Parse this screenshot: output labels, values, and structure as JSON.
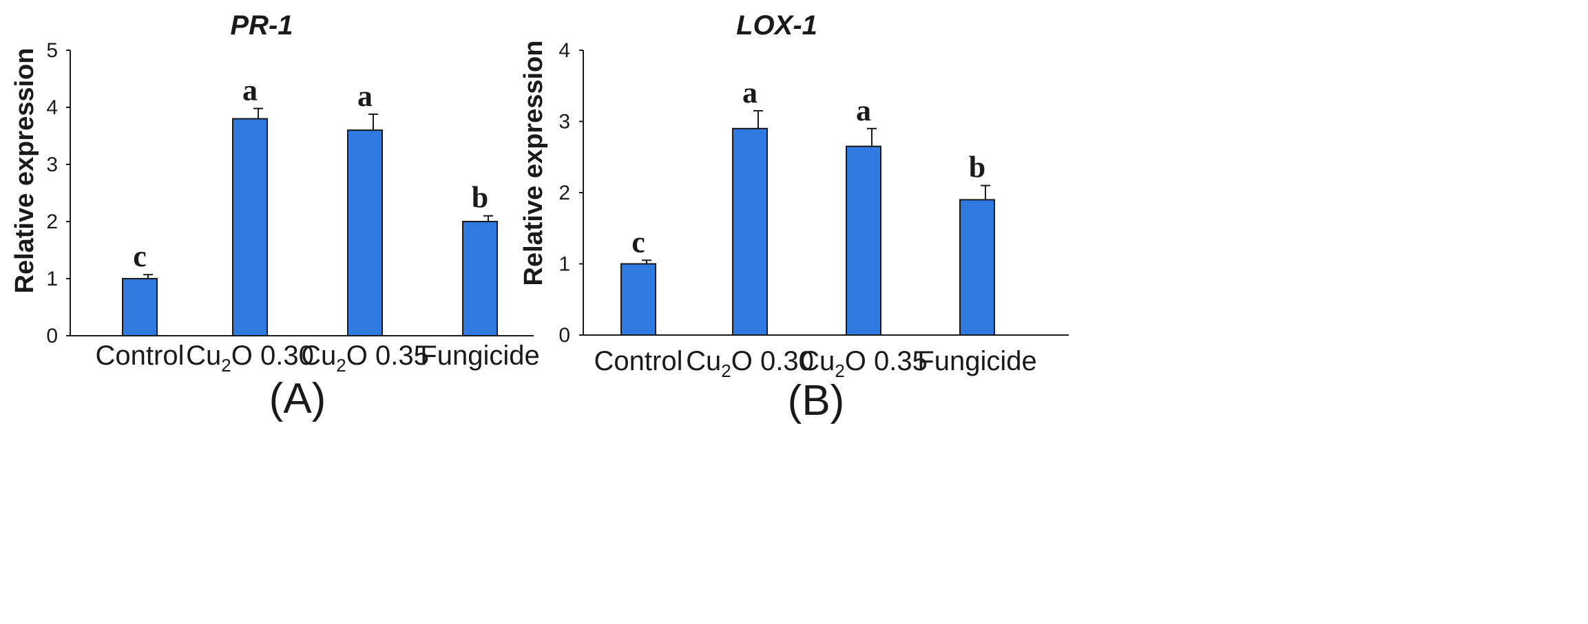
{
  "chart_data": [
    {
      "type": "bar",
      "panel_label": "(A)",
      "title": "PR-1",
      "xlabel": "",
      "ylabel": "Relative expression",
      "ylim": [
        0,
        5
      ],
      "yticks": [
        "0",
        "1",
        "2",
        "3",
        "4",
        "5"
      ],
      "categories": [
        {
          "base": "Control",
          "sub": "",
          "rest": ""
        },
        {
          "base": "Cu",
          "sub": "2",
          "rest": "O 0.30"
        },
        {
          "base": "Cu",
          "sub": "2",
          "rest": "O 0.35"
        },
        {
          "base": "Fungicide",
          "sub": "",
          "rest": ""
        }
      ],
      "values": [
        1.0,
        3.8,
        3.6,
        2.0
      ],
      "errors": [
        0.07,
        0.18,
        0.28,
        0.1
      ],
      "significance": [
        "c",
        "a",
        "a",
        "b"
      ],
      "bar_color": "#2f7ae0",
      "grid": false
    },
    {
      "type": "bar",
      "panel_label": "(B)",
      "title": "LOX-1",
      "xlabel": "",
      "ylabel": "Relative expression",
      "ylim": [
        0,
        4
      ],
      "yticks": [
        "0",
        "1",
        "2",
        "3",
        "4"
      ],
      "categories": [
        {
          "base": "Control",
          "sub": "",
          "rest": ""
        },
        {
          "base": "Cu",
          "sub": "2",
          "rest": "O 0.30"
        },
        {
          "base": "Cu",
          "sub": "2",
          "rest": "O 0.35"
        },
        {
          "base": "Fungicide",
          "sub": "",
          "rest": ""
        }
      ],
      "values": [
        1.0,
        2.9,
        2.65,
        1.9
      ],
      "errors": [
        0.05,
        0.25,
        0.25,
        0.2
      ],
      "significance": [
        "c",
        "a",
        "a",
        "b"
      ],
      "bar_color": "#2f7ae0",
      "grid": false
    }
  ]
}
